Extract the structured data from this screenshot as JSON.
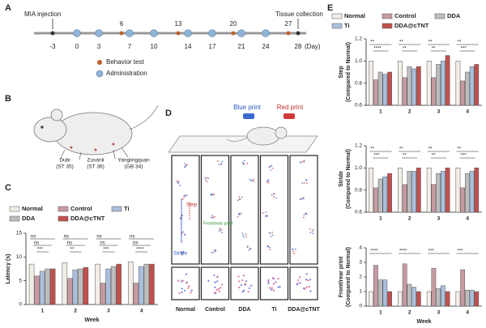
{
  "panel_labels": [
    "A",
    "B",
    "C",
    "D",
    "E"
  ],
  "timeline": {
    "events": [
      "MIA injection",
      "Tissue collection"
    ],
    "days": [
      -3,
      0,
      3,
      7,
      10,
      14,
      17,
      21,
      24,
      28
    ],
    "test_days": [
      6,
      13,
      20,
      27
    ],
    "unit": "(Day)",
    "legend": [
      "Behavior test",
      "Administration"
    ]
  },
  "acupoints": [
    {
      "name": "Dubi",
      "code": "(ST 35)"
    },
    {
      "name": "Zusanli",
      "code": "(ST 36)"
    },
    {
      "name": "Yanglingquan",
      "code": "(GB 34)"
    }
  ],
  "footprints": {
    "labels": [
      "Blue print",
      "Red print"
    ],
    "measures": [
      "Step",
      "Stride",
      "Front/rear print"
    ],
    "groups": [
      "Normal",
      "Control",
      "DDA",
      "Ti",
      "DDA@cTNT"
    ]
  },
  "chart_data": [
    {
      "type": "bar",
      "ylabel": [
        "Latency (s)"
      ],
      "xlabel": "Week",
      "categories": [
        "1",
        "2",
        "3",
        "4"
      ],
      "series": [
        {
          "name": "Normal",
          "color": "#f2ede6",
          "values": [
            8.5,
            8.8,
            8.5,
            9
          ]
        },
        {
          "name": "Control",
          "color": "#c79aa2",
          "values": [
            6,
            5.5,
            4.5,
            4.5
          ]
        },
        {
          "name": "Ti",
          "color": "#a9bfdc",
          "values": [
            7,
            7.3,
            7.5,
            8
          ]
        },
        {
          "name": "DDA",
          "color": "#bdbdbd",
          "values": [
            7.5,
            7.5,
            8,
            8.5
          ]
        },
        {
          "name": "DDA@cTNT",
          "color": "#c0504d",
          "values": [
            7.5,
            7.8,
            8.5,
            8.5
          ]
        }
      ],
      "ylim": [
        0,
        15
      ],
      "yticks": [
        0,
        5,
        10,
        15
      ],
      "significance": [
        [
          "ns",
          "ns",
          "***"
        ],
        [
          "ns",
          "ns",
          "**"
        ],
        [
          "ns",
          "ns",
          "***"
        ],
        [
          "ns",
          "ns",
          "****"
        ]
      ]
    },
    {
      "type": "bar",
      "ylabel": [
        "Step",
        "(Compared to Normal)"
      ],
      "categories": [
        "1",
        "2",
        "3",
        "4"
      ],
      "series": [
        {
          "name": "Normal",
          "color": "#f2ede6",
          "values": [
            1.0,
            1.0,
            1.0,
            1.0
          ]
        },
        {
          "name": "Control",
          "color": "#c79aa2",
          "values": [
            0.83,
            0.85,
            0.85,
            0.82
          ]
        },
        {
          "name": "DDA",
          "color": "#bdbdbd",
          "values": [
            0.9,
            0.95,
            0.97,
            0.9
          ]
        },
        {
          "name": "Ti",
          "color": "#a9bfdc",
          "values": [
            0.88,
            0.93,
            1.0,
            0.95
          ]
        },
        {
          "name": "DDA@cTNT",
          "color": "#c0504d",
          "values": [
            0.9,
            0.95,
            1.05,
            0.97
          ]
        }
      ],
      "ylim": [
        0.6,
        1.2
      ],
      "yticks": [
        {
          "value": 0.6,
          "label": "0.6"
        },
        {
          "value": 0.8,
          "label": "0.8"
        },
        {
          "value": 1,
          "label": "1.0"
        },
        {
          "value": 1.2,
          "label": "1.2"
        }
      ],
      "significance": [
        [
          "**",
          "****"
        ],
        [
          "**",
          "**"
        ],
        [
          "**",
          "**"
        ],
        [
          "**",
          "***"
        ]
      ]
    },
    {
      "type": "bar",
      "ylabel": [
        "Stride",
        "(Compared to Normal)"
      ],
      "categories": [
        "1",
        "2",
        "3",
        "4"
      ],
      "series": [
        {
          "name": "Normal",
          "color": "#f2ede6",
          "values": [
            1.0,
            1.0,
            1.0,
            1.0
          ]
        },
        {
          "name": "Control",
          "color": "#c79aa2",
          "values": [
            0.82,
            0.85,
            0.85,
            0.82
          ]
        },
        {
          "name": "DDA",
          "color": "#bdbdbd",
          "values": [
            0.9,
            0.97,
            0.95,
            0.95
          ]
        },
        {
          "name": "Ti",
          "color": "#a9bfdc",
          "values": [
            0.92,
            0.97,
            0.97,
            0.97
          ]
        },
        {
          "name": "DDA@cTNT",
          "color": "#c0504d",
          "values": [
            0.95,
            1.0,
            1.0,
            1.0
          ]
        }
      ],
      "ylim": [
        0.6,
        1.2
      ],
      "yticks": [
        {
          "value": 0.6,
          "label": "0.6"
        },
        {
          "value": 0.8,
          "label": "0.8"
        },
        {
          "value": 1,
          "label": "1.0"
        },
        {
          "value": 1.2,
          "label": "1.2"
        }
      ],
      "significance": [
        [
          "**",
          "***"
        ],
        [
          "**",
          "**"
        ],
        [
          "**",
          "**"
        ],
        [
          "**",
          "***"
        ]
      ]
    },
    {
      "type": "bar",
      "ylabel": [
        "Front/rear print",
        "(Compared to Normal)"
      ],
      "xlabel": "Week",
      "categories": [
        "1",
        "2",
        "3",
        "4"
      ],
      "series": [
        {
          "name": "Normal",
          "color": "#f2ede6",
          "values": [
            1.0,
            1.0,
            1.0,
            1.0
          ]
        },
        {
          "name": "Control",
          "color": "#c79aa2",
          "values": [
            2.8,
            2.9,
            2.6,
            2.5
          ]
        },
        {
          "name": "DDA",
          "color": "#bdbdbd",
          "values": [
            1.8,
            1.5,
            1.2,
            1.1
          ]
        },
        {
          "name": "Ti",
          "color": "#a9bfdc",
          "values": [
            1.8,
            1.3,
            1.4,
            1.1
          ]
        },
        {
          "name": "DDA@cTNT",
          "color": "#c0504d",
          "values": [
            1.0,
            1.0,
            1.0,
            1.0
          ]
        }
      ],
      "ylim": [
        0,
        4
      ],
      "yticks": [
        0,
        1,
        2,
        3,
        4
      ],
      "significance": [
        [
          "****"
        ],
        [
          "****"
        ],
        [
          "***"
        ],
        [
          "***"
        ]
      ]
    }
  ]
}
